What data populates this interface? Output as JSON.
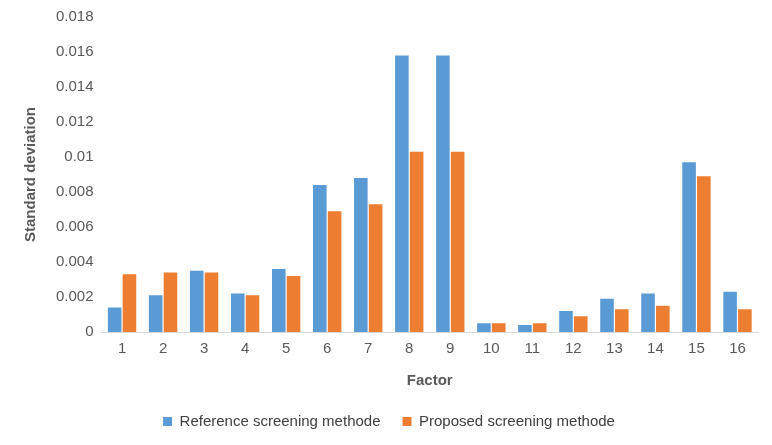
{
  "chart_data": {
    "type": "bar",
    "x_label": "Factor",
    "y_label": "Standard deviation",
    "categories": [
      "1",
      "2",
      "3",
      "4",
      "5",
      "6",
      "7",
      "8",
      "9",
      "10",
      "11",
      "12",
      "13",
      "14",
      "15",
      "16"
    ],
    "series": [
      {
        "name": "Reference screening methode",
        "color": "#5b9bd5",
        "values": [
          0.0014,
          0.0021,
          0.0035,
          0.0022,
          0.0036,
          0.0084,
          0.0088,
          0.0158,
          0.0158,
          0.0005,
          0.0004,
          0.0012,
          0.0019,
          0.0022,
          0.0097,
          0.0023
        ]
      },
      {
        "name": "Proposed screening methode",
        "color": "#ed7d31",
        "values": [
          0.0033,
          0.0034,
          0.0034,
          0.0021,
          0.0032,
          0.0069,
          0.0073,
          0.0103,
          0.0103,
          0.0005,
          0.0005,
          0.0009,
          0.0013,
          0.0015,
          0.0089,
          0.0013
        ]
      }
    ],
    "ylim": [
      0,
      0.018
    ],
    "yticks": [
      0,
      0.002,
      0.004,
      0.006,
      0.008,
      0.01,
      0.012,
      0.014,
      0.016,
      0.018
    ],
    "grid": false,
    "legend": "bottom"
  }
}
